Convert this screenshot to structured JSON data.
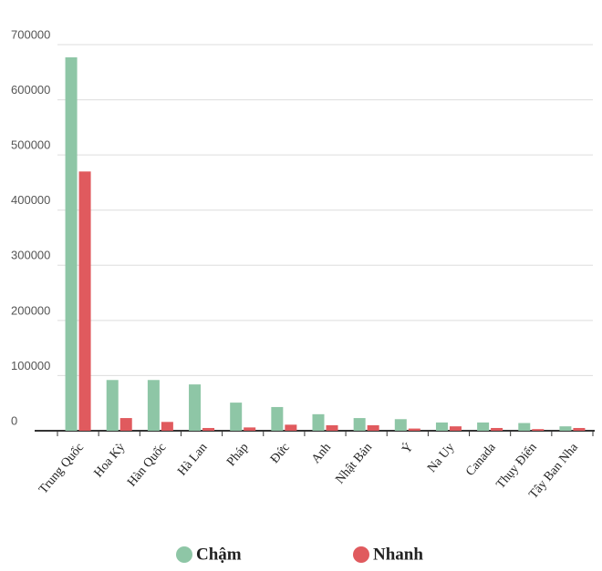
{
  "chart_data": {
    "type": "bar",
    "categories": [
      "Trung Quốc",
      "Hoa Kỳ",
      "Hàn Quốc",
      "Hà Lan",
      "Pháp",
      "Đức",
      "Anh",
      "Nhật Bản",
      "Ý",
      "Na Uy",
      "Canada",
      "Thụy Điển",
      "Tây Ban Nha"
    ],
    "series": [
      {
        "name": "Chậm",
        "color": "#8ec6a6",
        "values": [
          677000,
          92000,
          92000,
          84000,
          51000,
          43000,
          30000,
          23000,
          21000,
          15000,
          15000,
          14000,
          8000
        ]
      },
      {
        "name": "Nhanh",
        "color": "#e05a5e",
        "values": [
          470000,
          23000,
          16000,
          5000,
          6000,
          11000,
          10000,
          10000,
          4000,
          8000,
          5000,
          3000,
          5000
        ]
      }
    ],
    "ylim": [
      0,
      700000
    ],
    "yticks": [
      0,
      100000,
      200000,
      300000,
      400000,
      500000,
      600000,
      700000
    ],
    "grid": true
  }
}
